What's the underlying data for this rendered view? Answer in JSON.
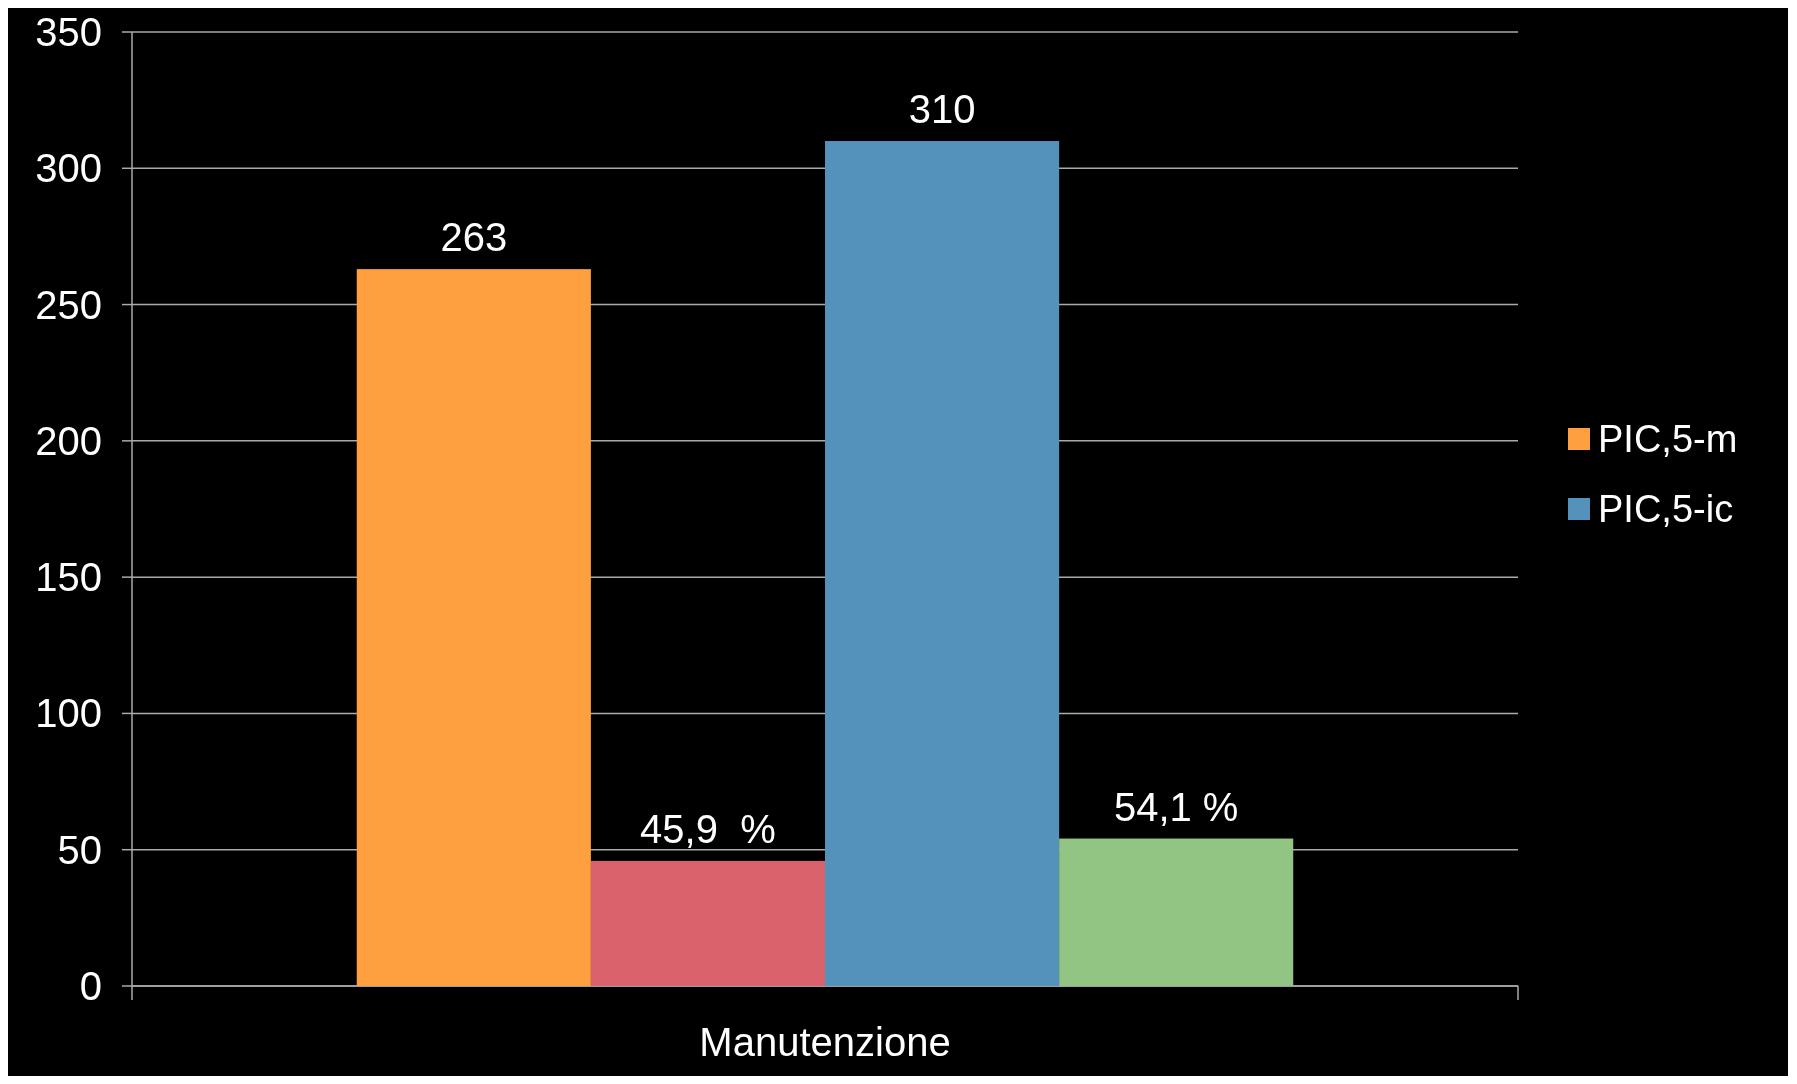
{
  "chart_data": {
    "type": "bar",
    "categories": [
      "Manutenzione"
    ],
    "series": [
      {
        "name": "PIC,5-m",
        "color": "#ffa040",
        "values": [
          263
        ],
        "value_labels": [
          "263"
        ]
      },
      {
        "color": "#d9626c",
        "values": [
          45.9
        ],
        "value_labels": [
          "45,9  %"
        ]
      },
      {
        "name": "PIC,5-ic",
        "color": "#5592bb",
        "values": [
          310
        ],
        "value_labels": [
          "310"
        ]
      },
      {
        "color": "#92c583",
        "values": [
          54.1
        ],
        "value_labels": [
          "54,1 %"
        ]
      }
    ],
    "ylim": [
      0,
      350
    ],
    "yticks": [
      0,
      50,
      100,
      150,
      200,
      250,
      300,
      350
    ],
    "grid": "y",
    "legend": "right"
  }
}
